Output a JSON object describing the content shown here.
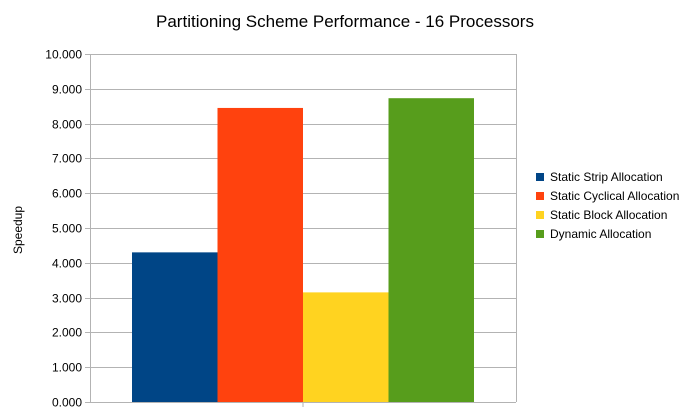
{
  "chart_data": {
    "type": "bar",
    "title": "Partitioning Scheme Performance - 16 Processors",
    "xlabel": "",
    "ylabel": "Speedup",
    "categories": [
      ""
    ],
    "series": [
      {
        "name": "Static Strip Allocation",
        "values": [
          4.3
        ],
        "color": "#004586"
      },
      {
        "name": "Static Cyclical Allocation",
        "values": [
          8.45
        ],
        "color": "#ff420e"
      },
      {
        "name": "Static Block Allocation",
        "values": [
          3.15
        ],
        "color": "#ffd320"
      },
      {
        "name": "Dynamic Allocation",
        "values": [
          8.73
        ],
        "color": "#579d1c"
      }
    ],
    "ylim": [
      0,
      10
    ],
    "yticks": [
      "0.000",
      "1.000",
      "2.000",
      "3.000",
      "4.000",
      "5.000",
      "6.000",
      "7.000",
      "8.000",
      "9.000",
      "10.000"
    ],
    "grid": true,
    "legend": "right"
  }
}
